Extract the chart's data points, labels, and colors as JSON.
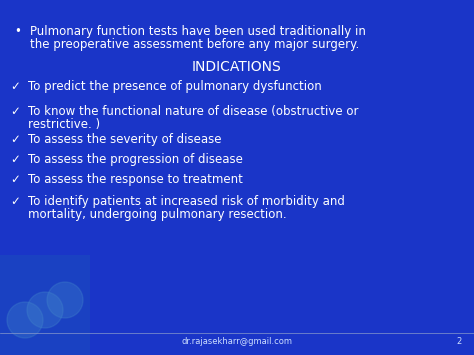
{
  "bg_color": "#1a35c8",
  "text_color": "#ffffff",
  "footer_color": "#ccddff",
  "bullet_char": "•",
  "bullet_text_line1": "Pulmonary function tests have been used traditionally in",
  "bullet_text_line2": "the preoperative assessment before any major surgery.",
  "section_title": "INDICATIONS",
  "check_mark": "✓",
  "check_items": [
    "To predict the presence of pulmonary dysfunction",
    "To know the functional nature of disease (obstructive or",
    "    restrictive. )",
    "To assess the severity of disease",
    "To assess the progression of disease",
    "To assess the response to treatment",
    "To identify patients at increased risk of morbidity and",
    "mortality, undergoing pulmonary resection."
  ],
  "check_items_structured": [
    {
      "lines": [
        "To predict the presence of pulmonary dysfunction"
      ],
      "indent2": false
    },
    {
      "lines": [
        "To know the functional nature of disease (obstructive or",
        "restrictive. )"
      ],
      "indent2": true
    },
    {
      "lines": [
        "To assess the severity of disease"
      ],
      "indent2": false
    },
    {
      "lines": [
        "To assess the progression of disease"
      ],
      "indent2": false
    },
    {
      "lines": [
        "To assess the response to treatment"
      ],
      "indent2": false
    },
    {
      "lines": [
        "To identify patients at increased risk of morbidity and",
        "mortality, undergoing pulmonary resection."
      ],
      "indent2": true
    }
  ],
  "footer_email": "dr.rajasekharr@gmail.com",
  "footer_page": "2",
  "bullet_fontsize": 8.5,
  "title_fontsize": 10.0,
  "check_fontsize": 8.5,
  "footer_fontsize": 6.0,
  "lung_color": "#1a50bb"
}
